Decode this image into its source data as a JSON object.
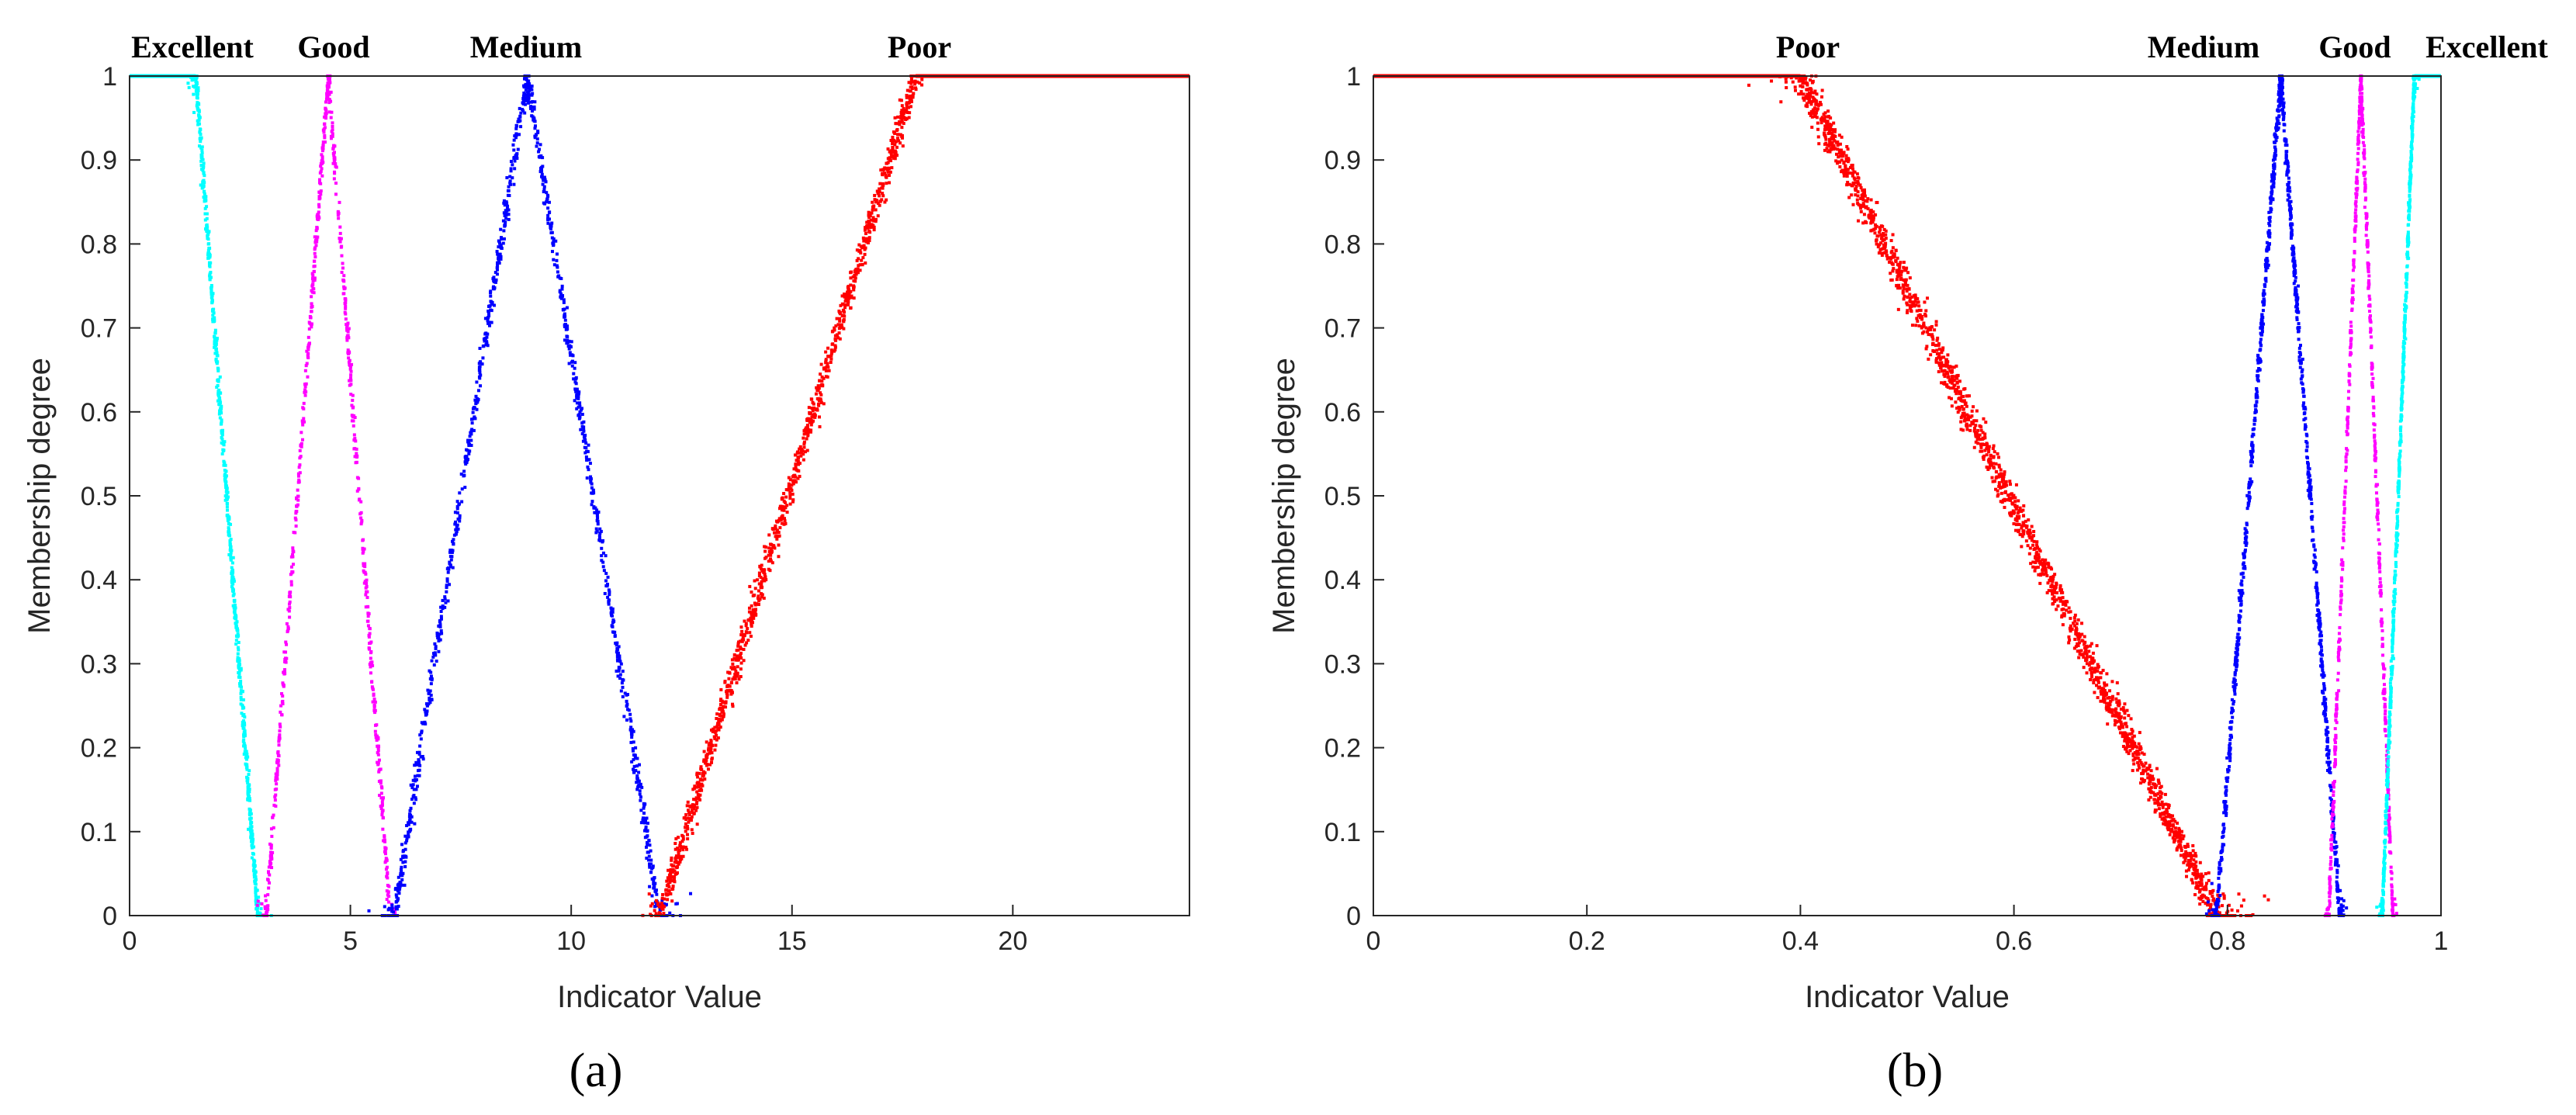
{
  "chart_data": [
    {
      "type": "scatter",
      "panel_label": "(a)",
      "xlabel": "Indicator Value",
      "ylabel": "Membership degree",
      "xlim": [
        0,
        24
      ],
      "ylim": [
        0,
        1
      ],
      "x_ticks": [
        "0",
        "5",
        "10",
        "15",
        "20"
      ],
      "x_tick_values": [
        0,
        5,
        10,
        15,
        20
      ],
      "y_ticks": [
        "0",
        "0.1",
        "0.2",
        "0.3",
        "0.4",
        "0.5",
        "0.6",
        "0.7",
        "0.8",
        "0.9",
        "1"
      ],
      "y_tick_values": [
        0,
        0.1,
        0.2,
        0.3,
        0.4,
        0.5,
        0.6,
        0.7,
        0.8,
        0.9,
        1
      ],
      "grid": false,
      "series": [
        {
          "name": "Excellent",
          "color": "#00ffff",
          "shape": "z",
          "params": [
            1.5,
            2.9
          ],
          "spread": 0.3,
          "x_range": [
            0,
            3.4
          ]
        },
        {
          "name": "Good",
          "color": "#ff00ff",
          "shape": "tri",
          "params": [
            3.1,
            4.5,
            5.9
          ],
          "spread": 0.3,
          "x_range": [
            2.6,
            6.4
          ]
        },
        {
          "name": "Medium",
          "color": "#0000ff",
          "shape": "tri",
          "params": [
            6.0,
            9.0,
            12.0
          ],
          "spread": 0.55,
          "x_range": [
            5.5,
            12.6
          ]
        },
        {
          "name": "Poor",
          "color": "#ff0000",
          "shape": "s",
          "params": [
            12.0,
            17.8
          ],
          "spread": 0.75,
          "x_range": [
            11.5,
            24
          ]
        }
      ]
    },
    {
      "type": "scatter",
      "panel_label": "(b)",
      "xlabel": "Indicator Value",
      "ylabel": "Membership degree",
      "xlim": [
        0,
        1
      ],
      "ylim": [
        0,
        1
      ],
      "x_ticks": [
        "0",
        "0.2",
        "0.4",
        "0.6",
        "0.8",
        "1"
      ],
      "x_tick_values": [
        0,
        0.2,
        0.4,
        0.6,
        0.8,
        1
      ],
      "y_ticks": [
        "0",
        "0.1",
        "0.2",
        "0.3",
        "0.4",
        "0.5",
        "0.6",
        "0.7",
        "0.8",
        "0.9",
        "1"
      ],
      "y_tick_values": [
        0,
        0.1,
        0.2,
        0.3,
        0.4,
        0.5,
        0.6,
        0.7,
        0.8,
        0.9,
        1
      ],
      "grid": false,
      "series": [
        {
          "name": "Poor",
          "color": "#ff0000",
          "shape": "z",
          "params": [
            0.4,
            0.79
          ],
          "spread": 0.07,
          "x_range": [
            0,
            0.8
          ]
        },
        {
          "name": "Medium",
          "color": "#0000ff",
          "shape": "tri",
          "params": [
            0.79,
            0.85,
            0.905
          ],
          "spread": 0.012,
          "x_range": [
            0.78,
            0.91
          ]
        },
        {
          "name": "Good",
          "color": "#ff00ff",
          "shape": "tri",
          "params": [
            0.895,
            0.925,
            0.955
          ],
          "spread": 0.006,
          "x_range": [
            0.89,
            0.96
          ]
        },
        {
          "name": "Excellent",
          "color": "#00ffff",
          "shape": "s",
          "params": [
            0.945,
            0.975
          ],
          "spread": 0.006,
          "x_range": [
            0.94,
            1.0
          ]
        }
      ]
    }
  ]
}
